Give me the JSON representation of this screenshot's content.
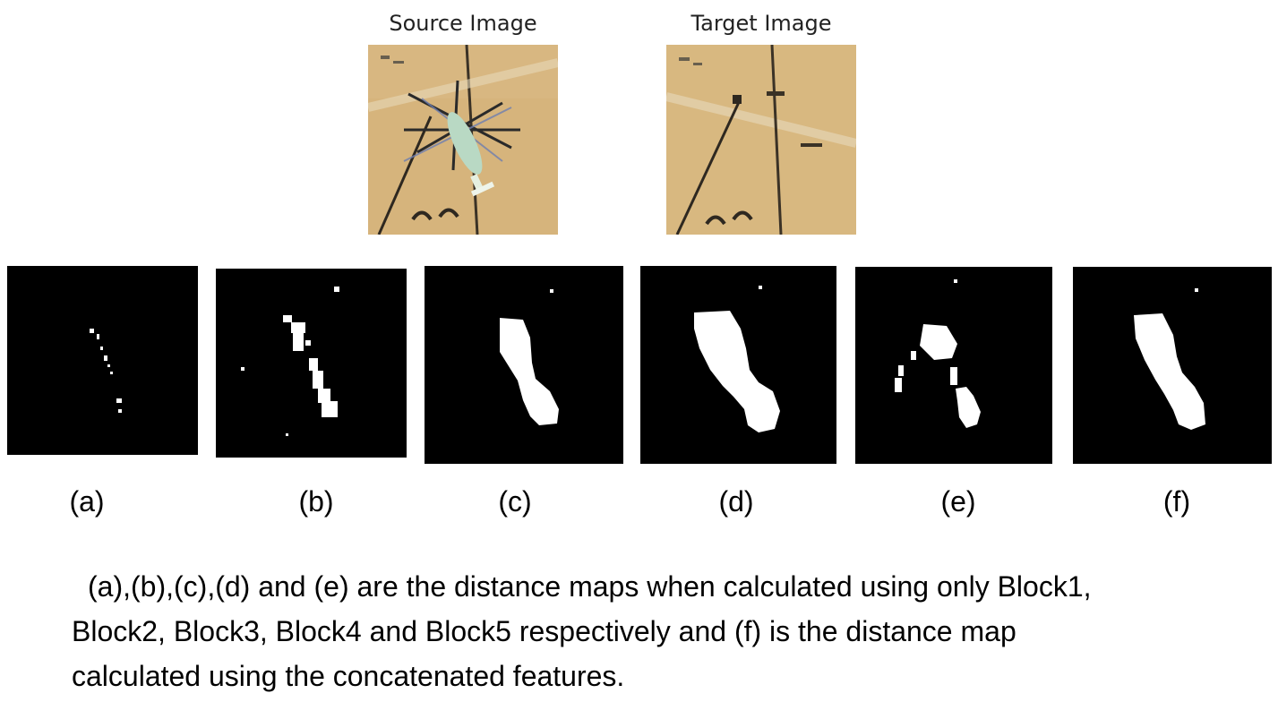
{
  "figure": {
    "source_title": "Source Image",
    "target_title": "Target Image",
    "panels": [
      {
        "label": "(a)"
      },
      {
        "label": "(b)"
      },
      {
        "label": "(c)"
      },
      {
        "label": "(d)"
      },
      {
        "label": "(e)"
      },
      {
        "label": "(f)"
      }
    ],
    "caption_lines": [
      "(a),(b),(c),(d) and (e) are the distance maps when calculated using only Block1,",
      "Block2, Block3, Block4 and Block5 respectively and (f) is the distance map",
      "calculated using the concatenated features."
    ]
  },
  "colors": {
    "sand": "#d4b27a",
    "map_background": "#000000",
    "map_foreground": "#ffffff"
  }
}
